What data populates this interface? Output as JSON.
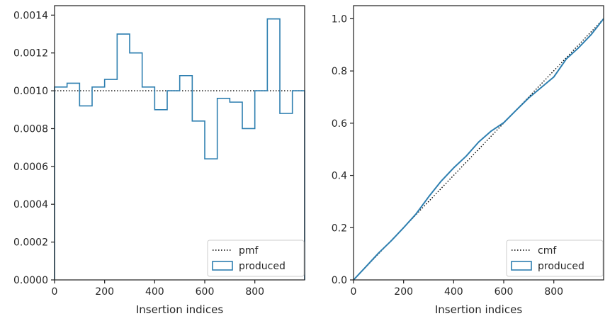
{
  "chart_data": [
    {
      "type": "step",
      "title": "",
      "xlabel": "Insertion indices",
      "ylabel": "",
      "xlim": [
        0,
        999
      ],
      "ylim": [
        0,
        0.00145
      ],
      "xticks": [
        0,
        200,
        400,
        600,
        800
      ],
      "xtick_labels": [
        "0",
        "200",
        "400",
        "600",
        "800"
      ],
      "yticks": [
        0,
        0.0002,
        0.0004,
        0.0006,
        0.0008,
        0.001,
        0.0012,
        0.0014
      ],
      "ytick_labels": [
        "0.0000",
        "0.0002",
        "0.0004",
        "0.0006",
        "0.0008",
        "0.0010",
        "0.0012",
        "0.0014"
      ],
      "grid": false,
      "legend_position": "lower-right",
      "series": [
        {
          "name": "pmf",
          "kind": "dotted-line",
          "color": "#000000",
          "x": [
            0,
            999
          ],
          "values": [
            0.001,
            0.001
          ]
        },
        {
          "name": "produced",
          "kind": "step-histogram",
          "color": "#2e7fb0",
          "bin_edges": [
            0,
            50,
            100,
            150,
            200,
            250,
            300,
            350,
            400,
            450,
            500,
            550,
            600,
            650,
            700,
            750,
            800,
            850,
            900,
            950,
            999
          ],
          "values": [
            0.00102,
            0.00104,
            0.00092,
            0.00102,
            0.00106,
            0.0013,
            0.0012,
            0.00102,
            0.0009,
            0.001,
            0.00108,
            0.00084,
            0.00064,
            0.00096,
            0.00094,
            0.0008,
            0.001,
            0.00138,
            0.00088,
            0.001
          ]
        }
      ]
    },
    {
      "type": "line",
      "title": "",
      "xlabel": "Insertion indices",
      "ylabel": "",
      "xlim": [
        0,
        999
      ],
      "ylim": [
        0,
        1.05
      ],
      "xticks": [
        0,
        200,
        400,
        600,
        800
      ],
      "xtick_labels": [
        "0",
        "200",
        "400",
        "600",
        "800"
      ],
      "yticks": [
        0,
        0.2,
        0.4,
        0.6,
        0.8,
        1.0
      ],
      "ytick_labels": [
        "0.0",
        "0.2",
        "0.4",
        "0.6",
        "0.8",
        "1.0"
      ],
      "grid": false,
      "legend_position": "lower-right",
      "series": [
        {
          "name": "cmf",
          "kind": "dotted-line",
          "color": "#000000",
          "x": [
            0,
            999
          ],
          "values": [
            0,
            1.0
          ]
        },
        {
          "name": "produced",
          "kind": "line",
          "color": "#2e7fb0",
          "x": [
            0,
            50,
            100,
            150,
            200,
            250,
            300,
            350,
            400,
            450,
            500,
            550,
            600,
            650,
            700,
            750,
            800,
            850,
            900,
            950,
            999
          ],
          "values": [
            0,
            0.051,
            0.103,
            0.149,
            0.2,
            0.253,
            0.318,
            0.378,
            0.429,
            0.474,
            0.528,
            0.57,
            0.602,
            0.65,
            0.697,
            0.737,
            0.777,
            0.846,
            0.89,
            0.94,
            1.0
          ]
        }
      ]
    }
  ]
}
